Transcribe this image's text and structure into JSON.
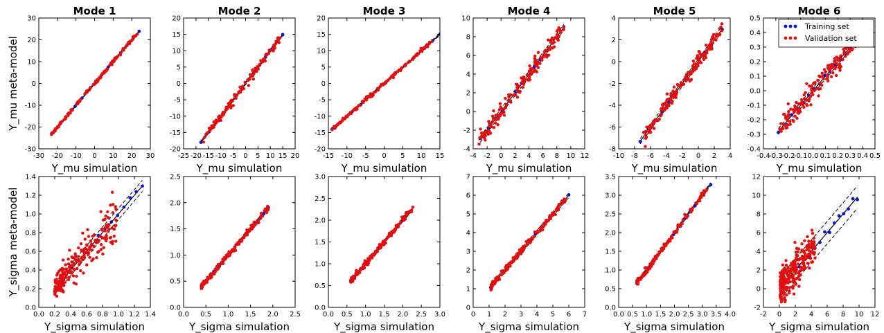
{
  "figure": {
    "row_ylabels": [
      "Y_mu meta-model",
      "Y_sigma meta-model"
    ],
    "colors": {
      "training": "#0a14c8",
      "validation": "#e01010",
      "identity_line": "#000000",
      "band_line": "#000000"
    }
  },
  "chart_data": [
    {
      "type": "scatter",
      "title": "Mode 1",
      "xlabel": "Y_mu simulation",
      "ylabel": "Y_mu meta-model",
      "xlim": [
        -30,
        30
      ],
      "ylim": [
        -30,
        30
      ],
      "xticks": [
        "-30",
        "-20",
        "-10",
        "0",
        "10",
        "20",
        "30"
      ],
      "yticks": [
        "-30",
        "-20",
        "-10",
        "0",
        "10",
        "20",
        "30"
      ],
      "xtick_values": [
        -30,
        -20,
        -10,
        0,
        10,
        20,
        30
      ],
      "ytick_values": [
        -30,
        -20,
        -10,
        0,
        10,
        20,
        30
      ],
      "data_range": [
        -23,
        24
      ],
      "val_range": [
        -24,
        24
      ],
      "band": 0.4,
      "spread": 0.35,
      "train_n": 14,
      "val_n": 130,
      "series": [
        {
          "name": "Training set"
        },
        {
          "name": "Validation set"
        }
      ]
    },
    {
      "type": "scatter",
      "title": "Mode 2",
      "xlabel": "Y_mu simulation",
      "ylabel": "",
      "xlim": [
        -25,
        20
      ],
      "ylim": [
        -20,
        20
      ],
      "xticks": [
        "-25",
        "-20",
        "-15",
        "-10",
        "-5",
        "0",
        "5",
        "10",
        "15",
        "20"
      ],
      "yticks": [
        "-20",
        "-15",
        "-10",
        "-5",
        "0",
        "5",
        "10",
        "15",
        "20"
      ],
      "xtick_values": [
        -25,
        -20,
        -15,
        -10,
        -5,
        0,
        5,
        10,
        15,
        20
      ],
      "ytick_values": [
        -20,
        -15,
        -10,
        -5,
        0,
        5,
        10,
        15,
        20
      ],
      "data_range": [
        -18,
        15
      ],
      "val_range": [
        -17,
        14
      ],
      "band": 0.4,
      "spread": 0.6,
      "train_n": 14,
      "val_n": 130,
      "series": [
        {
          "name": "Training set"
        },
        {
          "name": "Validation set"
        }
      ]
    },
    {
      "type": "scatter",
      "title": "Mode 3",
      "xlabel": "Y_mu simulation",
      "ylabel": "",
      "xlim": [
        -15,
        15
      ],
      "ylim": [
        -20,
        20
      ],
      "xticks": [
        "-15",
        "-10",
        "-5",
        "0",
        "5",
        "10",
        "15"
      ],
      "yticks": [
        "-20",
        "-15",
        "-10",
        "-5",
        "0",
        "5",
        "10",
        "15",
        "20"
      ],
      "xtick_values": [
        -15,
        -10,
        -5,
        0,
        5,
        10,
        15
      ],
      "ytick_values": [
        -20,
        -15,
        -10,
        -5,
        0,
        5,
        10,
        15,
        20
      ],
      "data_range": [
        -14,
        15
      ],
      "val_range": [
        -14,
        13
      ],
      "band": 0.3,
      "spread": 0.3,
      "train_n": 14,
      "val_n": 130,
      "series": [
        {
          "name": "Training set"
        },
        {
          "name": "Validation set"
        }
      ]
    },
    {
      "type": "scatter",
      "title": "Mode 4",
      "xlabel": "Y_mu simulation",
      "ylabel": "",
      "xlim": [
        -4,
        12
      ],
      "ylim": [
        -4,
        10
      ],
      "xticks": [
        "-4",
        "-2",
        "0",
        "2",
        "4",
        "6",
        "8",
        "10",
        "12"
      ],
      "yticks": [
        "-4",
        "-2",
        "0",
        "2",
        "4",
        "6",
        "8",
        "10"
      ],
      "xtick_values": [
        -4,
        -2,
        0,
        2,
        4,
        6,
        8,
        10,
        12
      ],
      "ytick_values": [
        -4,
        -2,
        0,
        2,
        4,
        6,
        8,
        10
      ],
      "data_range": [
        -3,
        9
      ],
      "val_range": [
        -3.2,
        9
      ],
      "band": 0.3,
      "spread": 0.45,
      "train_n": 14,
      "val_n": 160,
      "series": [
        {
          "name": "Training set"
        },
        {
          "name": "Validation set"
        }
      ]
    },
    {
      "type": "scatter",
      "title": "Mode 5",
      "xlabel": "Y_mu simulation",
      "ylabel": "",
      "xlim": [
        -10,
        4
      ],
      "ylim": [
        -8,
        4
      ],
      "xticks": [
        "-10",
        "-8",
        "-6",
        "-4",
        "-2",
        "0",
        "2",
        "4"
      ],
      "yticks": [
        "-8",
        "-6",
        "-4",
        "-2",
        "0",
        "2",
        "4"
      ],
      "xtick_values": [
        -10,
        -8,
        -6,
        -4,
        -2,
        0,
        2,
        4
      ],
      "ytick_values": [
        -8,
        -6,
        -4,
        -2,
        0,
        2,
        4
      ],
      "data_range": [
        -7.3,
        3
      ],
      "val_range": [
        -7,
        3
      ],
      "band": 0.25,
      "spread": 0.35,
      "train_n": 14,
      "val_n": 160,
      "series": [
        {
          "name": "Training set"
        },
        {
          "name": "Validation set"
        }
      ]
    },
    {
      "type": "scatter",
      "title": "Mode 6",
      "xlabel": "Y_mu simulation",
      "ylabel": "",
      "xlim": [
        -0.4,
        0.5
      ],
      "ylim": [
        -0.4,
        0.5
      ],
      "xticks": [
        "-0.4",
        "-0.3",
        "-0.2",
        "-0.1",
        "0.0",
        "0.1",
        "0.2",
        "0.3",
        "0.4",
        "0.5"
      ],
      "yticks": [
        "-0.4",
        "-0.3",
        "-0.2",
        "-0.1",
        "0.0",
        "0.1",
        "0.2",
        "0.3",
        "0.4",
        "0.5"
      ],
      "xtick_values": [
        -0.4,
        -0.3,
        -0.2,
        -0.1,
        0,
        0.1,
        0.2,
        0.3,
        0.4,
        0.5
      ],
      "ytick_values": [
        -0.4,
        -0.3,
        -0.2,
        -0.1,
        0,
        0.1,
        0.2,
        0.3,
        0.4,
        0.5
      ],
      "data_range": [
        -0.28,
        0.3
      ],
      "val_range": [
        -0.27,
        0.35
      ],
      "band": 0.02,
      "spread": 0.04,
      "train_n": 14,
      "val_n": 160,
      "legend": {
        "placement": "top-right",
        "entries": [
          "Training set",
          "Validation set"
        ]
      },
      "series": [
        {
          "name": "Training set"
        },
        {
          "name": "Validation set"
        }
      ]
    },
    {
      "type": "scatter",
      "title": "",
      "xlabel": "Y_sigma simulation",
      "ylabel": "Y_sigma meta-model",
      "xlim": [
        0,
        1.4
      ],
      "ylim": [
        0,
        1.4
      ],
      "xticks": [
        "0.0",
        "0.2",
        "0.4",
        "0.6",
        "0.8",
        "1.0",
        "1.2",
        "1.4"
      ],
      "yticks": [
        "0.0",
        "0.2",
        "0.4",
        "0.6",
        "0.8",
        "1.0",
        "1.2",
        "1.4"
      ],
      "xtick_values": [
        0,
        0.2,
        0.4,
        0.6,
        0.8,
        1.0,
        1.2,
        1.4
      ],
      "ytick_values": [
        0,
        0.2,
        0.4,
        0.6,
        0.8,
        1.0,
        1.2,
        1.4
      ],
      "data_range": [
        0.2,
        1.3
      ],
      "val_range": [
        0.2,
        1.0
      ],
      "band": 0.06,
      "spread": 0.09,
      "train_n": 14,
      "val_n": 220,
      "series": [
        {
          "name": "Training set"
        },
        {
          "name": "Validation set"
        }
      ]
    },
    {
      "type": "scatter",
      "title": "",
      "xlabel": "Y_sigma simulation",
      "ylabel": "",
      "xlim": [
        0,
        2.5
      ],
      "ylim": [
        0,
        2.5
      ],
      "xticks": [
        "0.0",
        "0.5",
        "1.0",
        "1.5",
        "2.0",
        "2.5"
      ],
      "yticks": [
        "0.0",
        "0.5",
        "1.0",
        "1.5",
        "2.0",
        "2.5"
      ],
      "xtick_values": [
        0,
        0.5,
        1.0,
        1.5,
        2.0,
        2.5
      ],
      "ytick_values": [
        0,
        0.5,
        1.0,
        1.5,
        2.0,
        2.5
      ],
      "data_range": [
        0.4,
        1.9
      ],
      "val_range": [
        0.4,
        1.9
      ],
      "band": 0.03,
      "spread": 0.03,
      "train_n": 14,
      "val_n": 150,
      "series": [
        {
          "name": "Training set"
        },
        {
          "name": "Validation set"
        }
      ]
    },
    {
      "type": "scatter",
      "title": "",
      "xlabel": "Y_sigma simulation",
      "ylabel": "",
      "xlim": [
        0,
        3
      ],
      "ylim": [
        0,
        3
      ],
      "xticks": [
        "0.0",
        "0.5",
        "1.0",
        "1.5",
        "2.0",
        "2.5",
        "3.0"
      ],
      "yticks": [
        "0.0",
        "0.5",
        "1.0",
        "1.5",
        "2.0",
        "2.5",
        "3.0"
      ],
      "xtick_values": [
        0,
        0.5,
        1.0,
        1.5,
        2.0,
        2.5,
        3.0
      ],
      "ytick_values": [
        0,
        0.5,
        1.0,
        1.5,
        2.0,
        2.5,
        3.0
      ],
      "data_range": [
        0.6,
        2.2
      ],
      "val_range": [
        0.6,
        2.3
      ],
      "band": 0.03,
      "spread": 0.03,
      "train_n": 14,
      "val_n": 150,
      "series": [
        {
          "name": "Training set"
        },
        {
          "name": "Validation set"
        }
      ]
    },
    {
      "type": "scatter",
      "title": "",
      "xlabel": "Y_sigma simulation",
      "ylabel": "",
      "xlim": [
        0,
        7
      ],
      "ylim": [
        0,
        7
      ],
      "xticks": [
        "0",
        "1",
        "2",
        "3",
        "4",
        "5",
        "6",
        "7"
      ],
      "yticks": [
        "0",
        "1",
        "2",
        "3",
        "4",
        "5",
        "6",
        "7"
      ],
      "xtick_values": [
        0,
        1,
        2,
        3,
        4,
        5,
        6,
        7
      ],
      "ytick_values": [
        0,
        1,
        2,
        3,
        4,
        5,
        6,
        7
      ],
      "data_range": [
        1.1,
        6
      ],
      "val_range": [
        1.1,
        5.8
      ],
      "band": 0.12,
      "spread": 0.08,
      "train_n": 14,
      "val_n": 160,
      "series": [
        {
          "name": "Training set"
        },
        {
          "name": "Validation set"
        }
      ]
    },
    {
      "type": "scatter",
      "title": "",
      "xlabel": "Y_sigma simulation",
      "ylabel": "",
      "xlim": [
        0,
        4
      ],
      "ylim": [
        0,
        3.5
      ],
      "xticks": [
        "0.0",
        "0.5",
        "1.0",
        "1.5",
        "2.0",
        "2.5",
        "3.0",
        "3.5",
        "4.0"
      ],
      "yticks": [
        "0.0",
        "0.5",
        "1.0",
        "1.5",
        "2.0",
        "2.5",
        "3.0",
        "3.5"
      ],
      "xtick_values": [
        0,
        0.5,
        1.0,
        1.5,
        2.0,
        2.5,
        3.0,
        3.5,
        4.0
      ],
      "ytick_values": [
        0,
        0.5,
        1.0,
        1.5,
        2.0,
        2.5,
        3.0,
        3.5
      ],
      "data_range": [
        0.65,
        3.3
      ],
      "val_range": [
        0.65,
        3.2
      ],
      "band": 0.04,
      "spread": 0.04,
      "train_n": 14,
      "val_n": 160,
      "series": [
        {
          "name": "Training set"
        },
        {
          "name": "Validation set"
        }
      ]
    },
    {
      "type": "scatter",
      "title": "",
      "xlabel": "Y_sigma simulation",
      "ylabel": "",
      "xlim": [
        -2,
        12
      ],
      "ylim": [
        -2,
        12
      ],
      "xticks": [
        "-2",
        "0",
        "2",
        "4",
        "6",
        "8",
        "10",
        "12"
      ],
      "yticks": [
        "-2",
        "0",
        "2",
        "4",
        "6",
        "8",
        "10",
        "12"
      ],
      "xtick_values": [
        -2,
        0,
        2,
        4,
        6,
        8,
        10,
        12
      ],
      "ytick_values": [
        -2,
        0,
        2,
        4,
        6,
        8,
        10,
        12
      ],
      "data_range": [
        0.3,
        9.8
      ],
      "val_range": [
        0.1,
        4.5
      ],
      "band": 1.2,
      "spread": 0.9,
      "train_n": 16,
      "val_n": 260,
      "series": [
        {
          "name": "Training set"
        },
        {
          "name": "Validation set"
        }
      ]
    }
  ]
}
